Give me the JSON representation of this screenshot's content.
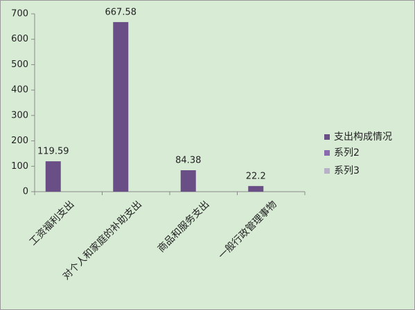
{
  "chart_data": {
    "type": "bar",
    "categories": [
      "工资福利支出",
      "对个人和家庭的补助支出",
      "商品和服务支出",
      "一般行政管理事物"
    ],
    "series": [
      {
        "name": "支出构成情况",
        "color": "#6a4f86",
        "values": [
          119.59,
          667.58,
          84.38,
          22.2
        ]
      },
      {
        "name": "系列2",
        "color": "#8a6bb0",
        "values": [
          null,
          null,
          null,
          null
        ]
      },
      {
        "name": "系列3",
        "color": "#b7b0c6",
        "values": [
          null,
          null,
          null,
          null
        ]
      }
    ],
    "ylim": [
      0,
      700
    ],
    "yticks": [
      0,
      100,
      200,
      300,
      400,
      500,
      600,
      700
    ],
    "grid": false,
    "legend": "right"
  }
}
